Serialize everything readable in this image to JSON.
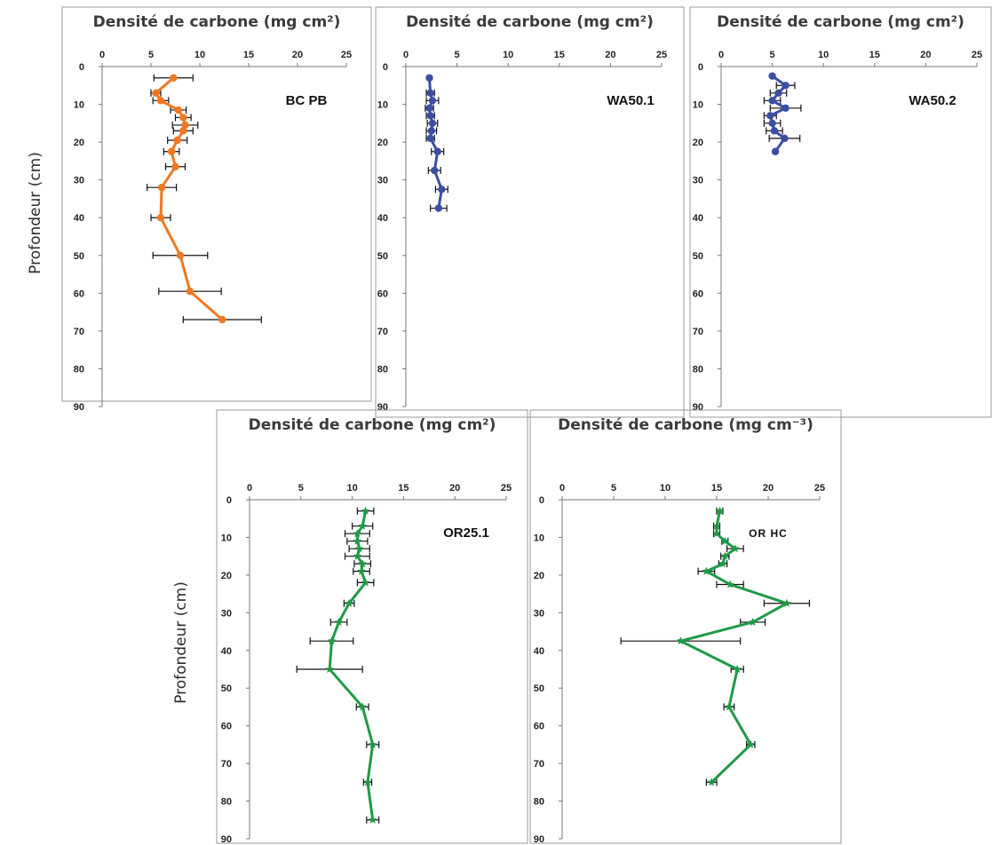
{
  "ylabel_top": "Profondeur (cm)",
  "ylabel_bottom": "Profondeur (cm)",
  "chart_data": [
    {
      "type": "line",
      "title": "Densité de carbone (mg cm²)",
      "label": "BC PB",
      "xlim": [
        0,
        25
      ],
      "ylim": [
        0,
        90
      ],
      "x_ticks": [
        "0",
        "5",
        "10",
        "15",
        "20",
        "25"
      ],
      "y_ticks": [
        "0",
        "10",
        "20",
        "30",
        "40",
        "50",
        "60",
        "70",
        "80",
        "90"
      ],
      "color": "#f07820",
      "marker": "circle",
      "points": [
        {
          "depth": 3,
          "value": 7.3,
          "err": 2.0
        },
        {
          "depth": 7,
          "value": 5.5,
          "err": 0.5
        },
        {
          "depth": 9,
          "value": 6.0,
          "err": 0.8
        },
        {
          "depth": 11.5,
          "value": 7.8,
          "err": 0.8
        },
        {
          "depth": 13.5,
          "value": 8.3,
          "err": 0.8
        },
        {
          "depth": 15.5,
          "value": 8.5,
          "err": 1.3
        },
        {
          "depth": 17,
          "value": 8.3,
          "err": 1.0
        },
        {
          "depth": 19.5,
          "value": 7.7,
          "err": 1.0
        },
        {
          "depth": 22.5,
          "value": 7.1,
          "err": 0.8
        },
        {
          "depth": 26.5,
          "value": 7.5,
          "err": 1.0
        },
        {
          "depth": 32,
          "value": 6.1,
          "err": 1.5
        },
        {
          "depth": 40,
          "value": 6.0,
          "err": 1.0
        },
        {
          "depth": 50,
          "value": 8.0,
          "err": 2.8
        },
        {
          "depth": 59.5,
          "value": 9.0,
          "err": 3.2
        },
        {
          "depth": 67,
          "value": 12.3,
          "err": 4.0
        }
      ]
    },
    {
      "type": "line",
      "title": "Densité de carbone (mg cm²)",
      "label": "WA50.1",
      "xlim": [
        0,
        25
      ],
      "ylim": [
        0,
        90
      ],
      "x_ticks": [
        "0",
        "5",
        "10",
        "15",
        "20",
        "25"
      ],
      "y_ticks": [
        "0",
        "10",
        "20",
        "30",
        "40",
        "50",
        "60",
        "70",
        "80",
        "90"
      ],
      "color": "#3a4ea3",
      "marker": "circle",
      "points": [
        {
          "depth": 3,
          "value": 2.3,
          "err": 0.0
        },
        {
          "depth": 7,
          "value": 2.4,
          "err": 0.4
        },
        {
          "depth": 9,
          "value": 2.6,
          "err": 0.6
        },
        {
          "depth": 11,
          "value": 2.3,
          "err": 0.4
        },
        {
          "depth": 13,
          "value": 2.4,
          "err": 0.4
        },
        {
          "depth": 15,
          "value": 2.6,
          "err": 0.5
        },
        {
          "depth": 17,
          "value": 2.5,
          "err": 0.5
        },
        {
          "depth": 19,
          "value": 2.4,
          "err": 0.4
        },
        {
          "depth": 22.5,
          "value": 3.1,
          "err": 0.6
        },
        {
          "depth": 27.5,
          "value": 2.8,
          "err": 0.6
        },
        {
          "depth": 32.5,
          "value": 3.5,
          "err": 0.6
        },
        {
          "depth": 37.5,
          "value": 3.2,
          "err": 0.8
        }
      ]
    },
    {
      "type": "line",
      "title": "Densité de carbone (mg cm²)",
      "label": "WA50.2",
      "xlim": [
        0,
        25
      ],
      "ylim": [
        0,
        90
      ],
      "x_ticks": [
        "0",
        "5",
        "10",
        "15",
        "20",
        "25"
      ],
      "y_ticks": [
        "0",
        "10",
        "20",
        "30",
        "40",
        "50",
        "60",
        "70",
        "80",
        "90"
      ],
      "color": "#3a4ea3",
      "marker": "circle",
      "points": [
        {
          "depth": 2.5,
          "value": 5.0,
          "err": 0.0
        },
        {
          "depth": 5,
          "value": 6.3,
          "err": 0.9
        },
        {
          "depth": 7,
          "value": 5.6,
          "err": 0.8
        },
        {
          "depth": 9,
          "value": 5.0,
          "err": 0.8
        },
        {
          "depth": 11,
          "value": 6.3,
          "err": 1.5
        },
        {
          "depth": 13,
          "value": 4.8,
          "err": 0.6
        },
        {
          "depth": 15,
          "value": 5.0,
          "err": 0.8
        },
        {
          "depth": 17,
          "value": 5.2,
          "err": 0.8
        },
        {
          "depth": 19,
          "value": 6.2,
          "err": 1.5
        },
        {
          "depth": 22.5,
          "value": 5.3,
          "err": 0.0
        }
      ]
    },
    {
      "type": "line",
      "title": "Densité de carbone (mg cm²)",
      "label": "OR25.1",
      "xlim": [
        0,
        25
      ],
      "ylim": [
        0,
        90
      ],
      "x_ticks": [
        "0",
        "5",
        "10",
        "15",
        "20",
        "25"
      ],
      "y_ticks": [
        "0",
        "10",
        "20",
        "30",
        "40",
        "50",
        "60",
        "70",
        "80",
        "90"
      ],
      "color": "#1f9a45",
      "marker": "star",
      "points": [
        {
          "depth": 3,
          "value": 11.3,
          "err": 0.8
        },
        {
          "depth": 7,
          "value": 11.0,
          "err": 1.0
        },
        {
          "depth": 9,
          "value": 10.5,
          "err": 1.2
        },
        {
          "depth": 11,
          "value": 10.5,
          "err": 1.0
        },
        {
          "depth": 13,
          "value": 10.7,
          "err": 1.0
        },
        {
          "depth": 15,
          "value": 10.5,
          "err": 1.2
        },
        {
          "depth": 17,
          "value": 11.0,
          "err": 0.8
        },
        {
          "depth": 19,
          "value": 10.9,
          "err": 0.8
        },
        {
          "depth": 22,
          "value": 11.3,
          "err": 0.8
        },
        {
          "depth": 27.5,
          "value": 9.7,
          "err": 0.5
        },
        {
          "depth": 32.5,
          "value": 8.7,
          "err": 0.8
        },
        {
          "depth": 37.5,
          "value": 8.0,
          "err": 2.1
        },
        {
          "depth": 45,
          "value": 7.8,
          "err": 3.2
        },
        {
          "depth": 55,
          "value": 11.0,
          "err": 0.6
        },
        {
          "depth": 65,
          "value": 12.0,
          "err": 0.6
        },
        {
          "depth": 75,
          "value": 11.5,
          "err": 0.4
        },
        {
          "depth": 85,
          "value": 12.0,
          "err": 0.6
        }
      ]
    },
    {
      "type": "line",
      "title": "Densité de carbone (mg cm⁻³)",
      "label": "OR HC",
      "xlim": [
        0,
        25
      ],
      "ylim": [
        0,
        90
      ],
      "x_ticks": [
        "0",
        "5",
        "10",
        "15",
        "20",
        "25"
      ],
      "y_ticks": [
        "0",
        "10",
        "20",
        "30",
        "40",
        "50",
        "60",
        "70",
        "80",
        "90"
      ],
      "color": "#1f9a45",
      "marker": "star",
      "points": [
        {
          "depth": 3,
          "value": 15.3,
          "err": 0.3
        },
        {
          "depth": 7,
          "value": 15.0,
          "err": 0.3
        },
        {
          "depth": 9,
          "value": 15.0,
          "err": 0.3
        },
        {
          "depth": 11,
          "value": 15.8,
          "err": 0.3
        },
        {
          "depth": 13,
          "value": 16.8,
          "err": 0.8
        },
        {
          "depth": 15,
          "value": 15.8,
          "err": 0.4
        },
        {
          "depth": 17,
          "value": 15.6,
          "err": 0.4
        },
        {
          "depth": 19,
          "value": 14.0,
          "err": 0.8
        },
        {
          "depth": 22.5,
          "value": 16.3,
          "err": 1.3
        },
        {
          "depth": 27.5,
          "value": 21.8,
          "err": 2.2
        },
        {
          "depth": 32.5,
          "value": 18.5,
          "err": 1.2
        },
        {
          "depth": 37.5,
          "value": 11.5,
          "err": 5.8
        },
        {
          "depth": 45,
          "value": 17.0,
          "err": 0.6
        },
        {
          "depth": 55,
          "value": 16.2,
          "err": 0.5
        },
        {
          "depth": 65,
          "value": 18.3,
          "err": 0.4
        },
        {
          "depth": 75,
          "value": 14.5,
          "err": 0.5
        }
      ]
    }
  ]
}
